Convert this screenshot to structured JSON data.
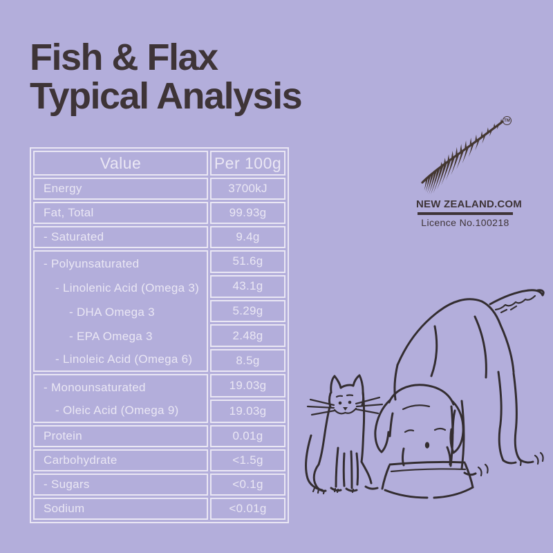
{
  "colors": {
    "background": "#b3aedb",
    "ink_dark": "#3e3437",
    "table_ink": "#eae7f4",
    "artwork_stroke": "#332d30",
    "fern": "#443731"
  },
  "title": {
    "lines": [
      "Fish & Flax",
      "Typical Analysis"
    ]
  },
  "table": {
    "header": [
      "Value",
      "Per 100g"
    ],
    "rows": [
      {
        "label": "Energy",
        "value": "3700kJ"
      },
      {
        "label": "Fat, Total",
        "value": "99.93g"
      },
      {
        "label": "- Saturated",
        "value": "9.4g"
      },
      {
        "label": "- Polyunsaturated",
        "value": "51.6g"
      },
      {
        "label": "- Linolenic Acid (Omega 3)",
        "value": "43.1g"
      },
      {
        "label": "- DHA Omega 3",
        "value": "5.29g"
      },
      {
        "label": "- EPA Omega 3",
        "value": "2.48g"
      },
      {
        "label": "- Linoleic Acid (Omega 6)",
        "value": "8.5g"
      },
      {
        "label": "- Monounsaturated",
        "value": "19.03g"
      },
      {
        "label": "- Oleic Acid (Omega 9)",
        "value": "19.03g"
      },
      {
        "label": "Protein",
        "value": "0.01g"
      },
      {
        "label": "Carbohydrate",
        "value": "<1.5g"
      },
      {
        "label": "- Sugars",
        "value": "<0.1g"
      },
      {
        "label": "Sodium",
        "value": "<0.01g"
      }
    ]
  },
  "fernmark": {
    "trademark": "TM",
    "brand": "NEW ZEALAND.COM",
    "licence": "Licence No.100218"
  },
  "illustration": {
    "alt": "Hand-drawn cat sitting beside a dog eating from a bowl"
  }
}
